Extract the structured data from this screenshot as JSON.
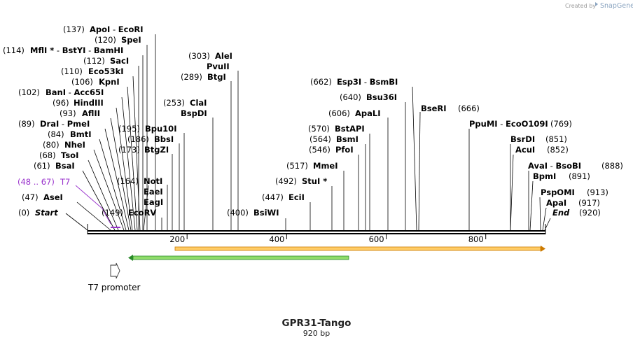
{
  "branding": {
    "created_by": "Created by",
    "product": "SnapGene"
  },
  "title": "GPR31-Tango",
  "subtitle": "920 bp",
  "ruler": {
    "ticks": [
      {
        "label": "200",
        "bp": 200
      },
      {
        "label": "400",
        "bp": 400
      },
      {
        "label": "600",
        "bp": 600
      },
      {
        "label": "800",
        "bp": 800
      }
    ]
  },
  "features": {
    "promoter": {
      "label": "T7 promoter"
    }
  },
  "sites": [
    {
      "pos": "(137)",
      "name": "ApoI",
      "sep": " - ",
      "name2": "EcoRI",
      "bp": 137
    },
    {
      "pos": "(120)",
      "name": "SpeI",
      "bp": 120
    },
    {
      "pos": "(114)",
      "name": "MflI *",
      "sep": " - ",
      "name2": "BstYI",
      "sep2": " - ",
      "name3": "BamHI",
      "bp": 114
    },
    {
      "pos": "(112)",
      "name": "SacI",
      "bp": 112
    },
    {
      "pos": "(110)",
      "name": "Eco53kI",
      "bp": 110
    },
    {
      "pos": "(106)",
      "name": "KpnI",
      "bp": 106
    },
    {
      "pos": "(102)",
      "name": "BanI",
      "sep": " - ",
      "name2": "Acc65I",
      "bp": 102
    },
    {
      "pos": "(96)",
      "name": "HindIII",
      "bp": 96
    },
    {
      "pos": "(93)",
      "name": "AflII",
      "bp": 93
    },
    {
      "pos": "(89)",
      "name": "DraI",
      "sep": " - ",
      "name2": "PmeI",
      "bp": 89
    },
    {
      "pos": "(84)",
      "name": "BmtI",
      "bp": 84
    },
    {
      "pos": "(80)",
      "name": "NheI",
      "bp": 80
    },
    {
      "pos": "(68)",
      "name": "TsoI",
      "bp": 68
    },
    {
      "pos": "(61)",
      "name": "BsaI",
      "bp": 61
    },
    {
      "pos": "(48 .. 67)",
      "name": "T7",
      "bp": 57,
      "t7": true
    },
    {
      "pos": "(47)",
      "name": "AseI",
      "bp": 47
    },
    {
      "pos": "(0)",
      "name": "Start",
      "bp": 0,
      "end": true
    },
    {
      "pos": "(303)",
      "name": "AleI",
      "bp": 303
    },
    {
      "name": "PvuII",
      "bp": 303
    },
    {
      "pos": "(289)",
      "name": "BtgI",
      "bp": 289
    },
    {
      "pos": "(253)",
      "name": "ClaI",
      "bp": 253
    },
    {
      "name": "BspDI",
      "bp": 253
    },
    {
      "pos": "(195)",
      "name": "Bpu10I",
      "bp": 195
    },
    {
      "pos": "(186)",
      "name": "BbsI",
      "bp": 186
    },
    {
      "pos": "(173)",
      "name": "BtgZI",
      "bp": 173
    },
    {
      "pos": "(164)",
      "name": "NotI",
      "bp": 164
    },
    {
      "name": "EaeI",
      "bp": 164
    },
    {
      "name": "EagI",
      "bp": 164
    },
    {
      "pos": "(149)",
      "name": "EcoRV",
      "bp": 149
    },
    {
      "pos": "(400)",
      "name": "BsiWI",
      "bp": 400
    },
    {
      "pos": "(447)",
      "name": "EciI",
      "bp": 447
    },
    {
      "pos": "(492)",
      "name": "StuI *",
      "bp": 492
    },
    {
      "pos": "(517)",
      "name": "MmeI",
      "bp": 517
    },
    {
      "pos": "(546)",
      "name": "PfoI",
      "bp": 546
    },
    {
      "pos": "(564)",
      "name": "BsmI",
      "bp": 564
    },
    {
      "pos": "(570)",
      "name": "BstAPI",
      "bp": 570
    },
    {
      "pos": "(606)",
      "name": "ApaLI",
      "bp": 606
    },
    {
      "pos": "(640)",
      "name": "Bsu36I",
      "bp": 640
    },
    {
      "pos": "(662)",
      "name": "Esp3I",
      "sep": " - ",
      "name2": "BsmBI",
      "bp": 662
    },
    {
      "name": "BseRI",
      "pos": "(666)",
      "bp": 666
    },
    {
      "name": "PpuMI",
      "sep": " - ",
      "name2": "EcoO109I",
      "pos": "(769)",
      "bp": 769
    },
    {
      "name": "BsrDI",
      "pos": "(851)",
      "bp": 851
    },
    {
      "name": "AcuI",
      "pos": "(852)",
      "bp": 852
    },
    {
      "name": "AvaI",
      "sep": " - ",
      "name2": "BsoBI",
      "pos": "(888)",
      "bp": 888
    },
    {
      "name": "BpmI",
      "pos": "(891)",
      "bp": 891
    },
    {
      "name": "PspOMI",
      "pos": "(913)",
      "bp": 913
    },
    {
      "name": "ApaI",
      "pos": "(917)",
      "bp": 917
    },
    {
      "name": "End",
      "pos": "(920)",
      "bp": 920,
      "end": true
    }
  ],
  "colors": {
    "t7": "#9932cc",
    "orange_feature": "#ff9900",
    "green_feature": "#22bb22"
  }
}
